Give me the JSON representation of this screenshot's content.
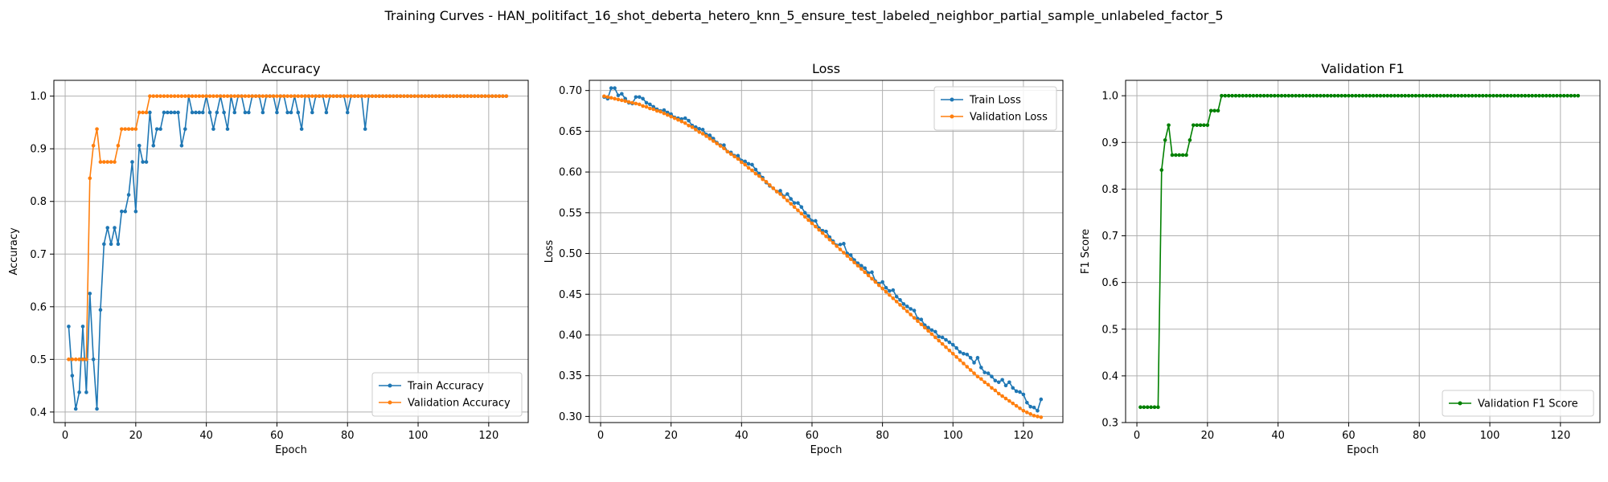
{
  "suptitle": "Training Curves - HAN_politifact_16_shot_deberta_hetero_knn_5_ensure_test_labeled_neighbor_partial_sample_unlabeled_factor_5",
  "colors": {
    "blue": "#1f77b4",
    "orange": "#ff7f0e",
    "green": "#008000",
    "grid": "#b0b0b0"
  },
  "chart_data": [
    {
      "type": "line",
      "title": "Accuracy",
      "xlabel": "Epoch",
      "ylabel": "Accuracy",
      "xlim": [
        -3.2,
        131.2
      ],
      "ylim": [
        0.38,
        1.03
      ],
      "xticks": [
        0,
        20,
        40,
        60,
        80,
        100,
        120
      ],
      "yticks": [
        0.4,
        0.5,
        0.6,
        0.7,
        0.8,
        0.9,
        1.0
      ],
      "ytick_labels": [
        "0.4",
        "0.5",
        "0.6",
        "0.7",
        "0.8",
        "0.9",
        "1.0"
      ],
      "grid": true,
      "legend_position": "lower-right",
      "series": [
        {
          "name": "Train Accuracy",
          "color": "#1f77b4",
          "x_start": 1,
          "values": [
            0.5625,
            0.469,
            0.406,
            0.4375,
            0.5625,
            0.4375,
            0.625,
            0.5,
            0.406,
            0.594,
            0.719,
            0.75,
            0.719,
            0.75,
            0.719,
            0.781,
            0.781,
            0.8125,
            0.875,
            0.781,
            0.906,
            0.875,
            0.875,
            0.969,
            0.906,
            0.9375,
            0.9375,
            0.969,
            0.969,
            0.969,
            0.969,
            0.969,
            0.906,
            0.9375,
            1.0,
            0.969,
            0.969,
            0.969,
            0.969,
            1.0,
            0.969,
            0.9375,
            0.969,
            1.0,
            0.969,
            0.9375,
            1.0,
            0.969,
            1.0,
            1.0,
            0.969,
            0.969,
            1.0,
            1.0,
            1.0,
            0.969,
            1.0,
            1.0,
            1.0,
            0.969,
            1.0,
            1.0,
            0.969,
            0.969,
            1.0,
            0.969,
            0.9375,
            1.0,
            1.0,
            0.969,
            1.0,
            1.0,
            1.0,
            0.969,
            1.0,
            1.0,
            1.0,
            1.0,
            1.0,
            0.969,
            1.0,
            1.0,
            1.0,
            1.0,
            0.9375,
            1.0,
            1.0,
            1.0,
            1.0,
            1.0,
            1.0,
            1.0,
            1.0,
            1.0,
            1.0,
            1.0,
            1.0,
            1.0,
            1.0,
            1.0,
            1.0,
            1.0,
            1.0,
            1.0,
            1.0,
            1.0,
            1.0,
            1.0,
            1.0,
            1.0,
            1.0,
            1.0,
            1.0,
            1.0,
            1.0,
            1.0,
            1.0,
            1.0,
            1.0,
            1.0,
            1.0,
            1.0,
            1.0,
            1.0,
            1.0
          ]
        },
        {
          "name": "Validation Accuracy",
          "color": "#ff7f0e",
          "x_start": 1,
          "values": [
            0.5,
            0.5,
            0.5,
            0.5,
            0.5,
            0.5,
            0.844,
            0.906,
            0.9375,
            0.875,
            0.875,
            0.875,
            0.875,
            0.875,
            0.906,
            0.9375,
            0.9375,
            0.9375,
            0.9375,
            0.9375,
            0.969,
            0.969,
            0.969,
            1.0,
            1.0,
            1.0,
            1.0,
            1.0,
            1.0,
            1.0,
            1.0,
            1.0,
            1.0,
            1.0,
            1.0,
            1.0,
            1.0,
            1.0,
            1.0,
            1.0,
            1.0,
            1.0,
            1.0,
            1.0,
            1.0,
            1.0,
            1.0,
            1.0,
            1.0,
            1.0,
            1.0,
            1.0,
            1.0,
            1.0,
            1.0,
            1.0,
            1.0,
            1.0,
            1.0,
            1.0,
            1.0,
            1.0,
            1.0,
            1.0,
            1.0,
            1.0,
            1.0,
            1.0,
            1.0,
            1.0,
            1.0,
            1.0,
            1.0,
            1.0,
            1.0,
            1.0,
            1.0,
            1.0,
            1.0,
            1.0,
            1.0,
            1.0,
            1.0,
            1.0,
            1.0,
            1.0,
            1.0,
            1.0,
            1.0,
            1.0,
            1.0,
            1.0,
            1.0,
            1.0,
            1.0,
            1.0,
            1.0,
            1.0,
            1.0,
            1.0,
            1.0,
            1.0,
            1.0,
            1.0,
            1.0,
            1.0,
            1.0,
            1.0,
            1.0,
            1.0,
            1.0,
            1.0,
            1.0,
            1.0,
            1.0,
            1.0,
            1.0,
            1.0,
            1.0,
            1.0,
            1.0,
            1.0,
            1.0,
            1.0,
            1.0
          ]
        }
      ]
    },
    {
      "type": "line",
      "title": "Loss",
      "xlabel": "Epoch",
      "ylabel": "Loss",
      "xlim": [
        -3.2,
        131.2
      ],
      "ylim": [
        0.2925,
        0.7125
      ],
      "xticks": [
        0,
        20,
        40,
        60,
        80,
        100,
        120
      ],
      "yticks": [
        0.3,
        0.35,
        0.4,
        0.45,
        0.5,
        0.55,
        0.6,
        0.65,
        0.7
      ],
      "ytick_labels": [
        "0.30",
        "0.35",
        "0.40",
        "0.45",
        "0.50",
        "0.55",
        "0.60",
        "0.65",
        "0.70"
      ],
      "grid": true,
      "legend_position": "upper-right",
      "series": [
        {
          "name": "Train Loss",
          "color": "#1f77b4",
          "x_start": 1,
          "values": [
            0.692,
            0.69,
            0.703,
            0.703,
            0.694,
            0.696,
            0.69,
            0.685,
            0.684,
            0.692,
            0.692,
            0.69,
            0.685,
            0.683,
            0.68,
            0.677,
            0.675,
            0.676,
            0.673,
            0.671,
            0.667,
            0.666,
            0.665,
            0.666,
            0.663,
            0.657,
            0.655,
            0.653,
            0.652,
            0.646,
            0.645,
            0.641,
            0.636,
            0.633,
            0.633,
            0.625,
            0.624,
            0.62,
            0.62,
            0.614,
            0.613,
            0.61,
            0.609,
            0.603,
            0.598,
            0.593,
            0.587,
            0.583,
            0.58,
            0.576,
            0.577,
            0.57,
            0.573,
            0.567,
            0.562,
            0.562,
            0.557,
            0.55,
            0.546,
            0.54,
            0.54,
            0.531,
            0.528,
            0.527,
            0.52,
            0.515,
            0.51,
            0.511,
            0.512,
            0.5,
            0.498,
            0.492,
            0.488,
            0.485,
            0.482,
            0.476,
            0.477,
            0.466,
            0.463,
            0.465,
            0.458,
            0.454,
            0.455,
            0.447,
            0.443,
            0.438,
            0.435,
            0.432,
            0.43,
            0.42,
            0.419,
            0.412,
            0.409,
            0.406,
            0.404,
            0.398,
            0.397,
            0.394,
            0.391,
            0.388,
            0.384,
            0.379,
            0.377,
            0.376,
            0.372,
            0.366,
            0.372,
            0.36,
            0.354,
            0.353,
            0.349,
            0.344,
            0.342,
            0.345,
            0.338,
            0.342,
            0.335,
            0.331,
            0.33,
            0.327,
            0.317,
            0.312,
            0.311,
            0.307,
            0.321
          ]
        },
        {
          "name": "Validation Loss",
          "color": "#ff7f0e",
          "x_start": 1,
          "values": [
            0.693,
            0.692,
            0.691,
            0.69,
            0.689,
            0.688,
            0.687,
            0.686,
            0.685,
            0.684,
            0.683,
            0.681,
            0.68,
            0.678,
            0.677,
            0.675,
            0.674,
            0.672,
            0.67,
            0.668,
            0.666,
            0.664,
            0.662,
            0.66,
            0.657,
            0.655,
            0.652,
            0.649,
            0.647,
            0.644,
            0.641,
            0.638,
            0.635,
            0.632,
            0.629,
            0.625,
            0.622,
            0.619,
            0.616,
            0.612,
            0.609,
            0.605,
            0.602,
            0.598,
            0.595,
            0.591,
            0.588,
            0.584,
            0.58,
            0.576,
            0.573,
            0.569,
            0.565,
            0.561,
            0.557,
            0.553,
            0.549,
            0.545,
            0.541,
            0.537,
            0.533,
            0.529,
            0.525,
            0.521,
            0.517,
            0.513,
            0.509,
            0.505,
            0.501,
            0.497,
            0.493,
            0.489,
            0.485,
            0.481,
            0.477,
            0.473,
            0.469,
            0.465,
            0.461,
            0.457,
            0.453,
            0.449,
            0.445,
            0.441,
            0.437,
            0.433,
            0.429,
            0.425,
            0.421,
            0.417,
            0.413,
            0.409,
            0.405,
            0.401,
            0.397,
            0.393,
            0.389,
            0.385,
            0.381,
            0.377,
            0.373,
            0.369,
            0.365,
            0.361,
            0.357,
            0.353,
            0.349,
            0.346,
            0.342,
            0.339,
            0.335,
            0.332,
            0.328,
            0.325,
            0.322,
            0.319,
            0.316,
            0.313,
            0.31,
            0.307,
            0.305,
            0.303,
            0.301,
            0.3,
            0.299
          ]
        }
      ]
    },
    {
      "type": "line",
      "title": "Validation F1",
      "xlabel": "Epoch",
      "ylabel": "F1 Score",
      "xlim": [
        -3.2,
        131.2
      ],
      "ylim": [
        0.3,
        1.033
      ],
      "xticks": [
        0,
        20,
        40,
        60,
        80,
        100,
        120
      ],
      "yticks": [
        0.3,
        0.4,
        0.5,
        0.6,
        0.7,
        0.8,
        0.9,
        1.0
      ],
      "ytick_labels": [
        "0.3",
        "0.4",
        "0.5",
        "0.6",
        "0.7",
        "0.8",
        "0.9",
        "1.0"
      ],
      "grid": true,
      "legend_position": "lower-right",
      "series": [
        {
          "name": "Validation F1 Score",
          "color": "#008000",
          "x_start": 1,
          "values": [
            0.333,
            0.333,
            0.333,
            0.333,
            0.333,
            0.333,
            0.841,
            0.905,
            0.937,
            0.873,
            0.873,
            0.873,
            0.873,
            0.873,
            0.905,
            0.937,
            0.937,
            0.937,
            0.937,
            0.937,
            0.968,
            0.968,
            0.968,
            1.0,
            1.0,
            1.0,
            1.0,
            1.0,
            1.0,
            1.0,
            1.0,
            1.0,
            1.0,
            1.0,
            1.0,
            1.0,
            1.0,
            1.0,
            1.0,
            1.0,
            1.0,
            1.0,
            1.0,
            1.0,
            1.0,
            1.0,
            1.0,
            1.0,
            1.0,
            1.0,
            1.0,
            1.0,
            1.0,
            1.0,
            1.0,
            1.0,
            1.0,
            1.0,
            1.0,
            1.0,
            1.0,
            1.0,
            1.0,
            1.0,
            1.0,
            1.0,
            1.0,
            1.0,
            1.0,
            1.0,
            1.0,
            1.0,
            1.0,
            1.0,
            1.0,
            1.0,
            1.0,
            1.0,
            1.0,
            1.0,
            1.0,
            1.0,
            1.0,
            1.0,
            1.0,
            1.0,
            1.0,
            1.0,
            1.0,
            1.0,
            1.0,
            1.0,
            1.0,
            1.0,
            1.0,
            1.0,
            1.0,
            1.0,
            1.0,
            1.0,
            1.0,
            1.0,
            1.0,
            1.0,
            1.0,
            1.0,
            1.0,
            1.0,
            1.0,
            1.0,
            1.0,
            1.0,
            1.0,
            1.0,
            1.0,
            1.0,
            1.0,
            1.0,
            1.0,
            1.0,
            1.0,
            1.0,
            1.0,
            1.0,
            1.0
          ]
        }
      ]
    }
  ]
}
